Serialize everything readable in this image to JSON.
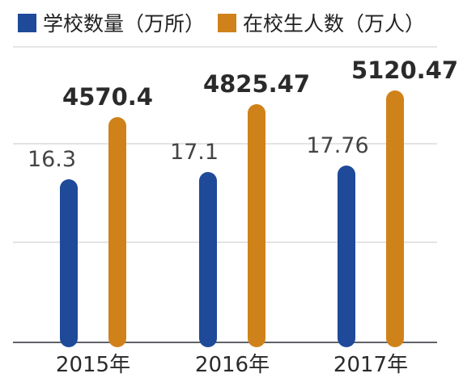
{
  "colors": {
    "school": "#1e4a99",
    "student": "#d0821a",
    "grid": "#c8c8c8",
    "axis": "#5f6368",
    "text": "#2a2a2a",
    "label_light": "#444444"
  },
  "chart_data": {
    "type": "bar",
    "categories": [
      "2015年",
      "2016年",
      "2017年"
    ],
    "series": [
      {
        "name": "学校数量（万所）",
        "values": [
          16.3,
          17.1,
          17.76
        ],
        "labels": [
          "16.3",
          "17.1",
          "17.76"
        ]
      },
      {
        "name": "在校生人数（万人）",
        "values": [
          4570.4,
          4825.47,
          5120.47
        ],
        "labels": [
          "4570.4",
          "4825.47",
          "5120.47"
        ]
      }
    ],
    "legend_position": "top-left",
    "grid": true
  }
}
